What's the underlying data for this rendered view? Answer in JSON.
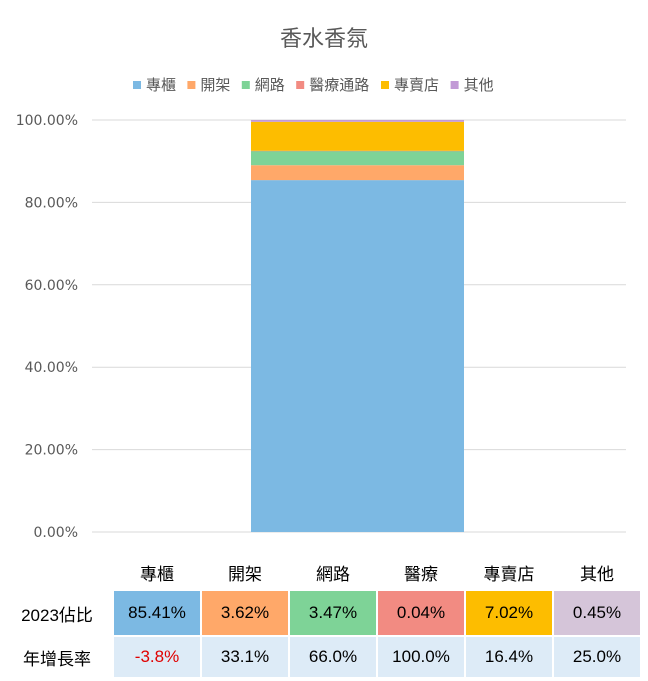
{
  "chart_data": {
    "type": "stacked-bar",
    "title": "香水香氛",
    "categories": [
      ""
    ],
    "series": [
      {
        "name": "專櫃",
        "values": [
          85.41
        ],
        "color": "#7cb9e3"
      },
      {
        "name": "開架",
        "values": [
          3.62
        ],
        "color": "#ffa869"
      },
      {
        "name": "網路",
        "values": [
          3.47
        ],
        "color": "#7ed397"
      },
      {
        "name": "醫療通路",
        "values": [
          0.04
        ],
        "color": "#f28b82"
      },
      {
        "name": "專賣店",
        "values": [
          7.02
        ],
        "color": "#fdbd00"
      },
      {
        "name": "其他",
        "values": [
          0.45
        ],
        "color": "#c29ad6"
      }
    ],
    "ylim": [
      0,
      100
    ],
    "yticks": [
      "0.00%",
      "20.00%",
      "40.00%",
      "60.00%",
      "80.00%",
      "100.00%"
    ],
    "grid": true,
    "legend": "top"
  },
  "table": {
    "headers": [
      "專櫃",
      "開架",
      "網路",
      "醫療",
      "專賣店",
      "其他"
    ],
    "share_label": "2023佔比",
    "share": [
      "85.41%",
      "3.62%",
      "3.47%",
      "0.04%",
      "7.02%",
      "0.45%"
    ],
    "share_colors": [
      "#7cb9e3",
      "#ffa869",
      "#7ed397",
      "#f28b82",
      "#fdbd00",
      "#d5c5d9"
    ],
    "growth_label": "年增長率",
    "growth": [
      "-3.8%",
      "33.1%",
      "66.0%",
      "100.0%",
      "16.4%",
      "25.0%"
    ]
  }
}
